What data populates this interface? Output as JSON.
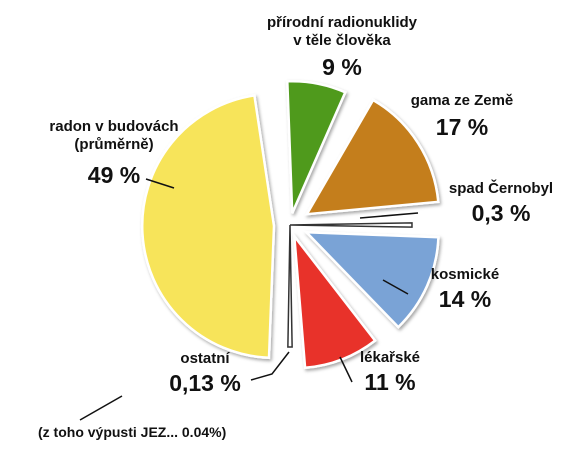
{
  "chart_data": {
    "type": "pie",
    "title": "",
    "slices": [
      {
        "label": "radon v budovách (průměrně)",
        "line1": "radon v budovách",
        "line2": "(průměrně)",
        "pct_text": "49 %",
        "value": 49,
        "color": "#f7e45a"
      },
      {
        "label": "přírodní radionuklidy v těle člověka",
        "line1": "přírodní radionuklidy",
        "line2": "v těle člověka",
        "pct_text": "9 %",
        "value": 9,
        "color": "#4f9a1e"
      },
      {
        "label": "gama ze Země",
        "line1": "gama ze Země",
        "pct_text": "17 %",
        "value": 17,
        "color": "#c47e1b"
      },
      {
        "label": "spad Černobyl",
        "line1": "spad Černobyl",
        "pct_text": "0,3 %",
        "value": 0.3,
        "color": "#ffffff"
      },
      {
        "label": "kosmické",
        "line1": "kosmické",
        "pct_text": "14 %",
        "value": 14,
        "color": "#7aa3d6"
      },
      {
        "label": "lékařské",
        "line1": "lékařské",
        "pct_text": "11 %",
        "value": 11,
        "color": "#e8302a"
      },
      {
        "label": "ostatní",
        "line1": "ostatní",
        "pct_text": "0,13 %",
        "value": 0.13,
        "color": "#ffffff"
      }
    ],
    "note": "(z toho výpusti JEZ... 0.04%)"
  }
}
